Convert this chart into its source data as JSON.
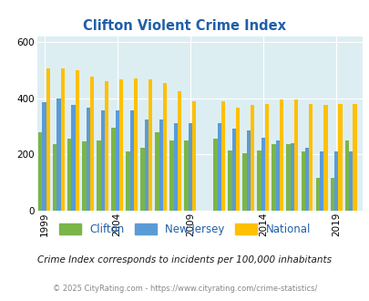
{
  "title": "Clifton Violent Crime Index",
  "years": [
    1999,
    2000,
    2001,
    2002,
    2003,
    2004,
    2005,
    2006,
    2007,
    2008,
    2009,
    2011,
    2012,
    2013,
    2014,
    2015,
    2016,
    2017,
    2018,
    2019,
    2020
  ],
  "clifton": [
    280,
    235,
    255,
    245,
    250,
    295,
    210,
    225,
    280,
    250,
    250,
    255,
    215,
    205,
    215,
    235,
    235,
    210,
    115,
    115,
    250
  ],
  "newjersey": [
    385,
    400,
    375,
    365,
    355,
    355,
    355,
    325,
    325,
    310,
    310,
    310,
    290,
    285,
    260,
    250,
    240,
    225,
    210,
    210,
    210
  ],
  "national": [
    505,
    505,
    500,
    475,
    460,
    465,
    470,
    465,
    455,
    425,
    390,
    390,
    365,
    375,
    380,
    395,
    395,
    380,
    375,
    380,
    380
  ],
  "colors": {
    "clifton": "#7ab648",
    "newjersey": "#5b9bd5",
    "national": "#ffc000"
  },
  "bg_color": "#ddeef3",
  "ylim": [
    0,
    620
  ],
  "yticks": [
    0,
    200,
    400,
    600
  ],
  "xtick_labels": [
    "1999",
    "2004",
    "2009",
    "2014",
    "2019"
  ],
  "xtick_years": [
    1999,
    2004,
    2009,
    2014,
    2019
  ],
  "subtitle": "Crime Index corresponds to incidents per 100,000 inhabitants",
  "footer": "© 2025 CityRating.com - https://www.cityrating.com/crime-statistics/",
  "legend_labels": [
    "Clifton",
    "New Jersey",
    "National"
  ],
  "title_color": "#1f5fa6",
  "subtitle_color": "#1a1a1a",
  "footer_color": "#888888"
}
